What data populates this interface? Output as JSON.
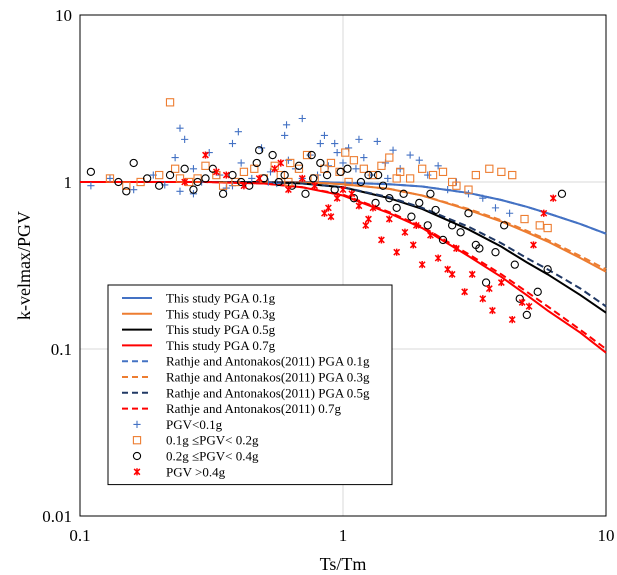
{
  "chart_data": {
    "type": "scatter",
    "xlabel": "Ts/Tm",
    "ylabel": "k-velmax/PGV",
    "xscale": "log",
    "yscale": "log",
    "xlim": [
      0.1,
      10
    ],
    "ylim": [
      0.01,
      10
    ],
    "x_ticks": [
      "0.1",
      "1",
      "10"
    ],
    "y_ticks": [
      "0.01",
      "0.1",
      "1",
      "10"
    ],
    "grid": true,
    "legend_position": "lower-left",
    "series": [
      {
        "name": "This study PGA 0.1g",
        "kind": "line",
        "style": "solid",
        "color": "#4472C4",
        "x": [
          0.1,
          0.5,
          0.8,
          1,
          1.5,
          2,
          3,
          4,
          5,
          6,
          8,
          10
        ],
        "y": [
          1.0,
          1.0,
          1.0,
          0.99,
          0.97,
          0.94,
          0.86,
          0.78,
          0.71,
          0.65,
          0.56,
          0.49
        ]
      },
      {
        "name": "This study PGA 0.3g",
        "kind": "line",
        "style": "solid",
        "color": "#ED7D31",
        "x": [
          0.1,
          0.5,
          0.8,
          1,
          1.5,
          2,
          3,
          4,
          5,
          6,
          8,
          10
        ],
        "y": [
          1.0,
          1.0,
          0.99,
          0.97,
          0.91,
          0.83,
          0.68,
          0.58,
          0.5,
          0.44,
          0.35,
          0.29
        ]
      },
      {
        "name": "This study PGA 0.5g",
        "kind": "line",
        "style": "solid",
        "color": "#000000",
        "x": [
          0.1,
          0.5,
          0.7,
          1,
          1.5,
          2,
          3,
          4,
          5,
          6,
          8,
          10
        ],
        "y": [
          1.0,
          1.0,
          0.98,
          0.93,
          0.8,
          0.69,
          0.52,
          0.41,
          0.33,
          0.28,
          0.21,
          0.165
        ]
      },
      {
        "name": "This study PGA 0.7g",
        "kind": "line",
        "style": "solid",
        "color": "#FF0000",
        "x": [
          0.1,
          0.3,
          0.5,
          0.7,
          1,
          1.5,
          2,
          3,
          4,
          5,
          6,
          8,
          10
        ],
        "y": [
          1.0,
          1.0,
          0.98,
          0.93,
          0.83,
          0.65,
          0.53,
          0.36,
          0.27,
          0.21,
          0.17,
          0.125,
          0.095
        ]
      },
      {
        "name": "Rathje and Antonakos(2011) PGA 0.1g",
        "kind": "line",
        "style": "dashed",
        "color": "#4472C4",
        "x": [
          0.1,
          0.5,
          0.8,
          1,
          1.5,
          2,
          3,
          4,
          5,
          6,
          8,
          10
        ],
        "y": [
          1.0,
          1.0,
          1.0,
          0.99,
          0.97,
          0.94,
          0.86,
          0.78,
          0.71,
          0.65,
          0.56,
          0.49
        ]
      },
      {
        "name": "Rathje and Antonakos(2011) PGA 0.3g",
        "kind": "line",
        "style": "dashed",
        "color": "#ED7D31",
        "x": [
          0.1,
          0.5,
          0.8,
          1,
          1.5,
          2,
          3,
          4,
          5,
          6,
          8,
          10
        ],
        "y": [
          1.0,
          1.0,
          0.99,
          0.97,
          0.91,
          0.83,
          0.69,
          0.59,
          0.51,
          0.45,
          0.36,
          0.3
        ]
      },
      {
        "name": "Rathje and Antonakos(2011) PGA 0.5g",
        "kind": "line",
        "style": "dashed",
        "color": "#203864",
        "x": [
          0.1,
          0.5,
          0.7,
          1,
          1.5,
          2,
          3,
          4,
          5,
          6,
          8,
          10
        ],
        "y": [
          1.0,
          1.0,
          0.98,
          0.93,
          0.81,
          0.7,
          0.54,
          0.43,
          0.35,
          0.3,
          0.23,
          0.18
        ]
      },
      {
        "name": "Rathje and Antonakos(2011) 0.7g",
        "kind": "line",
        "style": "dashed",
        "color": "#FF0000",
        "x": [
          0.1,
          0.3,
          0.5,
          0.7,
          1,
          1.5,
          2,
          3,
          4,
          5,
          6,
          8,
          10
        ],
        "y": [
          1.0,
          1.0,
          0.98,
          0.93,
          0.84,
          0.66,
          0.54,
          0.37,
          0.28,
          0.22,
          0.18,
          0.13,
          0.1
        ]
      },
      {
        "name": "PGV<0.1g",
        "kind": "scatter",
        "marker": "plus",
        "color": "#4472C4",
        "x": [
          0.11,
          0.13,
          0.16,
          0.19,
          0.21,
          0.23,
          0.24,
          0.25,
          0.27,
          0.29,
          0.31,
          0.34,
          0.36,
          0.38,
          0.4,
          0.41,
          0.45,
          0.49,
          0.53,
          0.56,
          0.6,
          0.62,
          0.66,
          0.7,
          0.75,
          0.8,
          0.82,
          0.88,
          0.95,
          1.0,
          1.05,
          1.12,
          1.2,
          1.28,
          1.35,
          1.45,
          1.55,
          1.65,
          1.8,
          1.95,
          2.1,
          2.3,
          2.5,
          2.7,
          3.0,
          3.4,
          3.8,
          4.3,
          0.24,
          0.38,
          0.52,
          0.7,
          0.85,
          0.27,
          0.61,
          0.93,
          1.15,
          1.48
        ],
        "y": [
          0.95,
          1.05,
          0.9,
          1.1,
          0.96,
          1.4,
          2.1,
          1.8,
          1.2,
          1.0,
          1.5,
          1.1,
          0.92,
          1.7,
          2.0,
          1.3,
          1.05,
          1.6,
          1.15,
          0.98,
          1.9,
          1.35,
          1.2,
          2.4,
          1.45,
          1.1,
          1.7,
          1.25,
          1.5,
          1.3,
          1.6,
          1.2,
          1.4,
          1.1,
          1.75,
          1.3,
          1.55,
          1.2,
          1.45,
          1.35,
          1.1,
          1.25,
          0.9,
          1.0,
          0.85,
          0.8,
          0.7,
          0.65,
          0.88,
          0.95,
          1.0,
          1.05,
          1.9,
          0.85,
          2.2,
          1.7,
          1.8,
          1.05
        ]
      },
      {
        "name": "0.1g ≤PGV< 0.2g",
        "kind": "scatter",
        "marker": "square",
        "color": "#ED7D31",
        "x": [
          0.13,
          0.15,
          0.17,
          0.2,
          0.22,
          0.23,
          0.26,
          0.28,
          0.3,
          0.33,
          0.35,
          0.39,
          0.42,
          0.46,
          0.5,
          0.55,
          0.58,
          0.63,
          0.68,
          0.73,
          0.78,
          0.85,
          0.9,
          0.97,
          1.05,
          1.1,
          1.2,
          1.3,
          1.4,
          1.5,
          1.65,
          1.8,
          2.0,
          2.2,
          2.4,
          2.7,
          3.0,
          3.2,
          3.6,
          4.0,
          4.4,
          0.24,
          0.62,
          1.02,
          1.6,
          2.6,
          4.9,
          5.6,
          6.0
        ],
        "y": [
          1.05,
          0.95,
          1.0,
          1.1,
          3.0,
          1.2,
          1.0,
          1.05,
          1.25,
          1.1,
          0.95,
          1.0,
          1.15,
          1.2,
          1.05,
          1.25,
          1.1,
          1.3,
          1.2,
          1.45,
          1.05,
          1.2,
          1.3,
          1.15,
          1.0,
          1.35,
          1.2,
          1.1,
          1.25,
          1.4,
          1.15,
          1.05,
          1.2,
          1.1,
          1.15,
          0.95,
          0.9,
          1.1,
          1.2,
          1.15,
          1.1,
          1.05,
          1.0,
          1.5,
          1.05,
          1.0,
          0.6,
          0.55,
          0.53
        ]
      },
      {
        "name": "0.2g ≤PGV< 0.4g",
        "kind": "scatter",
        "marker": "circle",
        "color": "#000000",
        "x": [
          0.11,
          0.14,
          0.16,
          0.18,
          0.2,
          0.22,
          0.25,
          0.27,
          0.3,
          0.32,
          0.35,
          0.38,
          0.41,
          0.44,
          0.47,
          0.5,
          0.54,
          0.57,
          0.6,
          0.64,
          0.68,
          0.72,
          0.77,
          0.82,
          0.87,
          0.93,
          0.98,
          1.04,
          1.1,
          1.17,
          1.25,
          1.33,
          1.42,
          1.5,
          1.6,
          1.7,
          1.82,
          1.95,
          2.1,
          2.25,
          2.4,
          2.6,
          2.8,
          3.0,
          3.2,
          3.5,
          3.8,
          4.1,
          4.5,
          5.0,
          5.5,
          6.0,
          6.8,
          0.15,
          0.28,
          0.48,
          0.76,
          1.36,
          2.15,
          3.3,
          4.7
        ],
        "y": [
          1.15,
          1.0,
          1.3,
          1.05,
          0.95,
          1.1,
          1.2,
          0.9,
          1.05,
          1.2,
          0.85,
          1.1,
          1.0,
          0.95,
          1.3,
          1.05,
          1.45,
          1.0,
          1.1,
          0.95,
          1.25,
          0.85,
          1.05,
          1.3,
          1.1,
          0.9,
          1.15,
          1.2,
          0.8,
          1.0,
          1.1,
          0.75,
          0.95,
          0.8,
          0.7,
          0.85,
          0.62,
          0.75,
          0.55,
          0.68,
          0.45,
          0.55,
          0.5,
          0.65,
          0.42,
          0.25,
          0.38,
          0.55,
          0.32,
          0.16,
          0.22,
          0.3,
          0.85,
          0.88,
          1.0,
          1.55,
          1.45,
          1.1,
          0.85,
          0.4,
          0.2
        ]
      },
      {
        "name": "PGV >0.4g",
        "kind": "scatter",
        "marker": "asterisk",
        "color": "#FF0000",
        "x": [
          0.25,
          0.3,
          0.36,
          0.42,
          0.48,
          0.55,
          0.62,
          0.7,
          0.78,
          0.85,
          0.9,
          0.95,
          1.0,
          1.08,
          1.15,
          1.22,
          1.3,
          1.4,
          1.5,
          1.6,
          1.72,
          1.85,
          2.0,
          2.15,
          2.3,
          2.5,
          2.7,
          2.9,
          3.1,
          3.4,
          3.7,
          4.0,
          4.4,
          4.8,
          5.3,
          5.8,
          6.3,
          0.33,
          0.58,
          0.88,
          1.25,
          1.9,
          2.6,
          3.6,
          5.1
        ],
        "y": [
          1.0,
          1.45,
          1.1,
          0.95,
          1.05,
          1.2,
          0.9,
          1.05,
          0.95,
          0.65,
          0.62,
          0.8,
          0.9,
          0.85,
          0.72,
          0.55,
          0.7,
          0.45,
          0.6,
          0.38,
          0.5,
          0.42,
          0.32,
          0.48,
          0.35,
          0.3,
          0.4,
          0.22,
          0.28,
          0.2,
          0.17,
          0.25,
          0.15,
          0.19,
          0.42,
          0.65,
          0.8,
          1.15,
          1.3,
          0.7,
          0.6,
          0.55,
          0.28,
          0.23,
          0.18
        ]
      }
    ]
  }
}
